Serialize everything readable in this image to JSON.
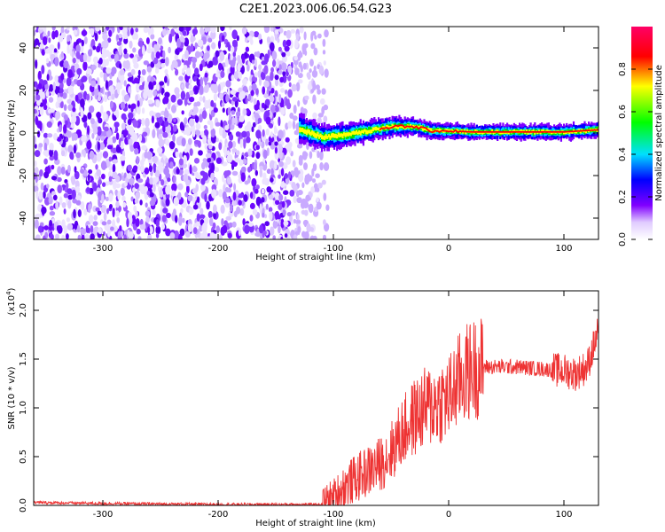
{
  "title": "C2E1.2023.006.06.54.G23",
  "chart_data": [
    {
      "type": "heatmap",
      "xlabel": "Height of straight line (km)",
      "ylabel": "Frequency (Hz)",
      "xlim": [
        -360,
        130
      ],
      "ylim": [
        -50,
        50
      ],
      "x_ticks": [
        -300,
        -200,
        -100,
        0,
        100
      ],
      "y_ticks": [
        -40,
        -20,
        0,
        20,
        40
      ],
      "colorbar": {
        "label": "Normalized spectral amplitude",
        "range": [
          0,
          1
        ],
        "ticks": [
          0.0,
          0.2,
          0.4,
          0.6,
          0.8
        ],
        "colors": [
          "#ffffff",
          "#e6d6ff",
          "#7f00ff",
          "#0000ff",
          "#00e5ff",
          "#00ff00",
          "#ffff00",
          "#ff0000",
          "#ff0066"
        ]
      },
      "signal_onset_km": -130,
      "noise_extent_km": [
        -360,
        -105
      ],
      "signal_trace": [
        {
          "x": -130,
          "y": 2
        },
        {
          "x": -110,
          "y": -2
        },
        {
          "x": -90,
          "y": -1
        },
        {
          "x": -70,
          "y": 1
        },
        {
          "x": -50,
          "y": 3
        },
        {
          "x": -30,
          "y": 3
        },
        {
          "x": -15,
          "y": 1
        },
        {
          "x": 0,
          "y": 1
        },
        {
          "x": 20,
          "y": 0.5
        },
        {
          "x": 60,
          "y": 0.5
        },
        {
          "x": 100,
          "y": 0.5
        },
        {
          "x": 130,
          "y": 1.5
        }
      ]
    },
    {
      "type": "line",
      "xlabel": "Height of straight line (km)",
      "ylabel": "SNR (10 * v/v)",
      "y_multiplier": "(x10",
      "y_multiplier_exp": "4",
      "y_multiplier_close": ")",
      "xlim": [
        -360,
        130
      ],
      "ylim": [
        0,
        2.2
      ],
      "x_ticks": [
        -300,
        -200,
        -100,
        0,
        100
      ],
      "y_ticks": [
        0.0,
        0.5,
        1.0,
        1.5,
        2.0
      ],
      "color": "#ee3333",
      "series": [
        {
          "x": [
            -360,
            -300,
            -200,
            -110,
            -100,
            -90,
            -80,
            -70,
            -60,
            -50,
            -40,
            -30,
            -20,
            -10,
            0,
            10,
            20,
            30,
            40,
            60,
            80,
            100,
            110,
            120,
            125,
            130
          ],
          "values": [
            0.03,
            0.02,
            0.01,
            0.01,
            0.08,
            0.2,
            0.28,
            0.35,
            0.42,
            0.55,
            0.75,
            0.9,
            1.0,
            1.05,
            1.1,
            1.3,
            1.4,
            1.42,
            1.42,
            1.42,
            1.4,
            1.38,
            1.35,
            1.42,
            1.6,
            1.8
          ]
        }
      ]
    }
  ]
}
